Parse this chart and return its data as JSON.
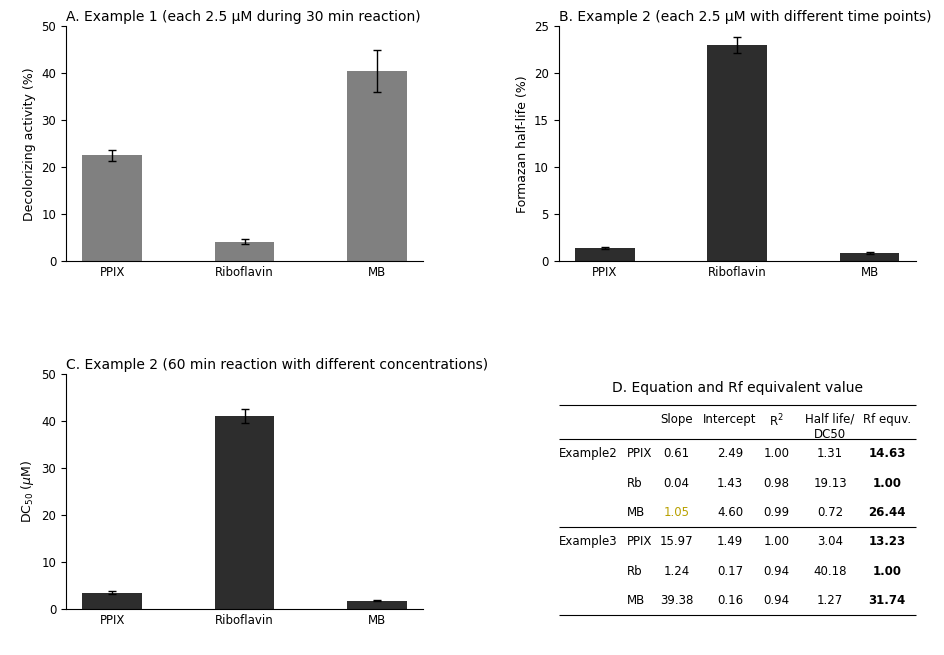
{
  "panel_A": {
    "title": "A. Example 1 (each 2.5 μM during 30 min reaction)",
    "categories": [
      "PPIX",
      "Riboflavin",
      "MB"
    ],
    "values": [
      22.5,
      4.2,
      40.5
    ],
    "errors": [
      1.2,
      0.5,
      4.5
    ],
    "ylabel": "Decolorizing activity (%)",
    "ylim": [
      0,
      50
    ],
    "yticks": [
      0,
      10,
      20,
      30,
      40,
      50
    ],
    "bar_color": "#808080"
  },
  "panel_B": {
    "title": "B. Example 2 (each 2.5 μM with different time points)",
    "categories": [
      "PPIX",
      "Riboflavin",
      "MB"
    ],
    "values": [
      1.4,
      23.0,
      0.9
    ],
    "errors": [
      0.1,
      0.8,
      0.1
    ],
    "ylabel": "Formazan half-life (%)",
    "ylim": [
      0,
      25
    ],
    "yticks": [
      0,
      5,
      10,
      15,
      20,
      25
    ],
    "bar_color": "#2d2d2d"
  },
  "panel_C": {
    "title": "C. Example 2 (60 min reaction with different concentrations)",
    "categories": [
      "PPIX",
      "Riboflavin",
      "MB"
    ],
    "values": [
      3.5,
      41.0,
      1.8
    ],
    "errors": [
      0.3,
      1.5,
      0.15
    ],
    "ylim": [
      0,
      50
    ],
    "yticks": [
      0,
      10,
      20,
      30,
      40,
      50
    ],
    "bar_color": "#2d2d2d"
  },
  "panel_D": {
    "title": "D. Equation and Rf equivalent value",
    "rows": [
      [
        "Example2",
        "PPIX",
        "0.61",
        "2.49",
        "1.00",
        "1.31",
        "14.63"
      ],
      [
        "",
        "Rb",
        "0.04",
        "1.43",
        "0.98",
        "19.13",
        "1.00"
      ],
      [
        "",
        "MB",
        "1.05",
        "4.60",
        "0.99",
        "0.72",
        "26.44"
      ],
      [
        "Example3",
        "PPIX",
        "15.97",
        "1.49",
        "1.00",
        "3.04",
        "13.23"
      ],
      [
        "",
        "Rb",
        "1.24",
        "0.17",
        "0.94",
        "40.18",
        "1.00"
      ],
      [
        "",
        "MB",
        "39.38",
        "0.16",
        "0.94",
        "1.27",
        "31.74"
      ]
    ]
  },
  "background_color": "#ffffff",
  "title_fontsize": 10,
  "axis_fontsize": 9,
  "tick_fontsize": 8.5,
  "table_fontsize": 8.5
}
